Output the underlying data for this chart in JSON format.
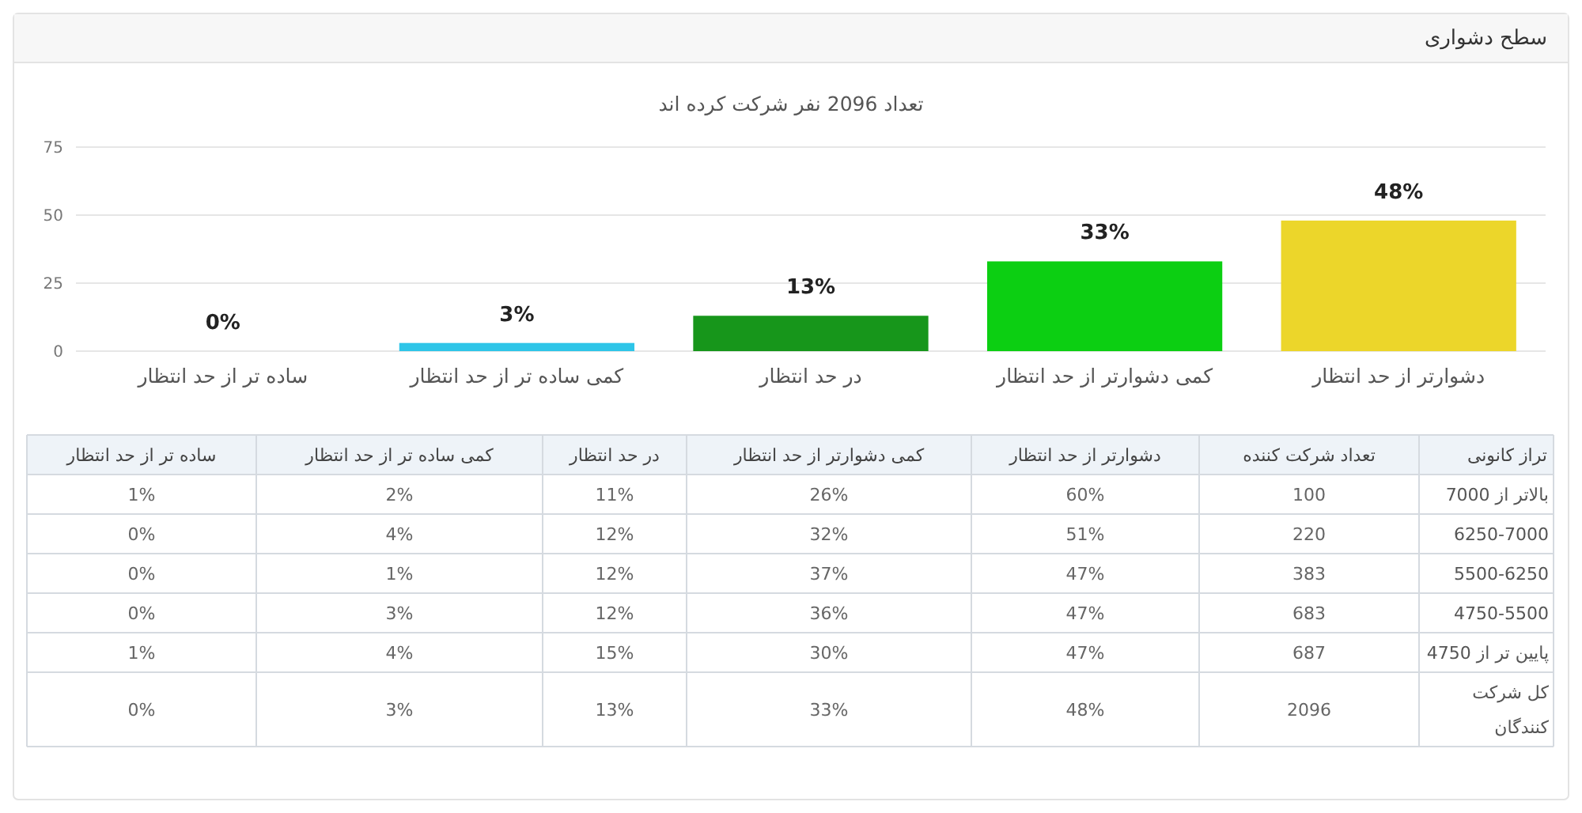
{
  "chart_data": [
    {
      "type": "bar",
      "title": "سطح دشواری",
      "subtitle": "تعداد 2096 نفر شرکت کرده اند",
      "categories": [
        "ساده تر از حد انتظار",
        "کمی ساده تر از حد انتظار",
        "در حد انتظار",
        "کمی دشوارتر از حد انتظار",
        "دشوارتر از حد انتظار"
      ],
      "values": [
        0,
        3,
        13,
        33,
        48
      ],
      "colors": [
        null,
        "#2ec5e8",
        "#17961b",
        "#0ccf12",
        "#ecd62a"
      ],
      "value_labels": [
        "0%",
        "3%",
        "13%",
        "33%",
        "48%"
      ],
      "ylim": [
        0,
        75
      ],
      "yticks": [
        0,
        25,
        50,
        75
      ],
      "grid": "y"
    },
    {
      "type": "other",
      "categories": [
        "ساده تر از حد انتظار",
        "کمی ساده تر از حد انتظار",
        "در حد انتظار",
        "کمی دشوارتر از حد انتظار",
        "دشوارتر از حد انتظار",
        "تعداد شرکت کننده"
      ],
      "y2_categories": [
        "بالاتر از 7000",
        "6250-7000",
        "5500-6250",
        "4750-5500",
        "پایین تر از 4750",
        "کل شرکت کنندگان"
      ],
      "y2label": "تراز کانونی",
      "cell_labels": [
        [
          "1%",
          "2%",
          "11%",
          "26%",
          "60%",
          "100"
        ],
        [
          "0%",
          "4%",
          "12%",
          "32%",
          "51%",
          "220"
        ],
        [
          "0%",
          "1%",
          "12%",
          "37%",
          "47%",
          "383"
        ],
        [
          "0%",
          "3%",
          "12%",
          "36%",
          "47%",
          "683"
        ],
        [
          "1%",
          "4%",
          "15%",
          "30%",
          "47%",
          "687"
        ],
        [
          "0%",
          "3%",
          "13%",
          "33%",
          "48%",
          "2096"
        ]
      ]
    }
  ]
}
